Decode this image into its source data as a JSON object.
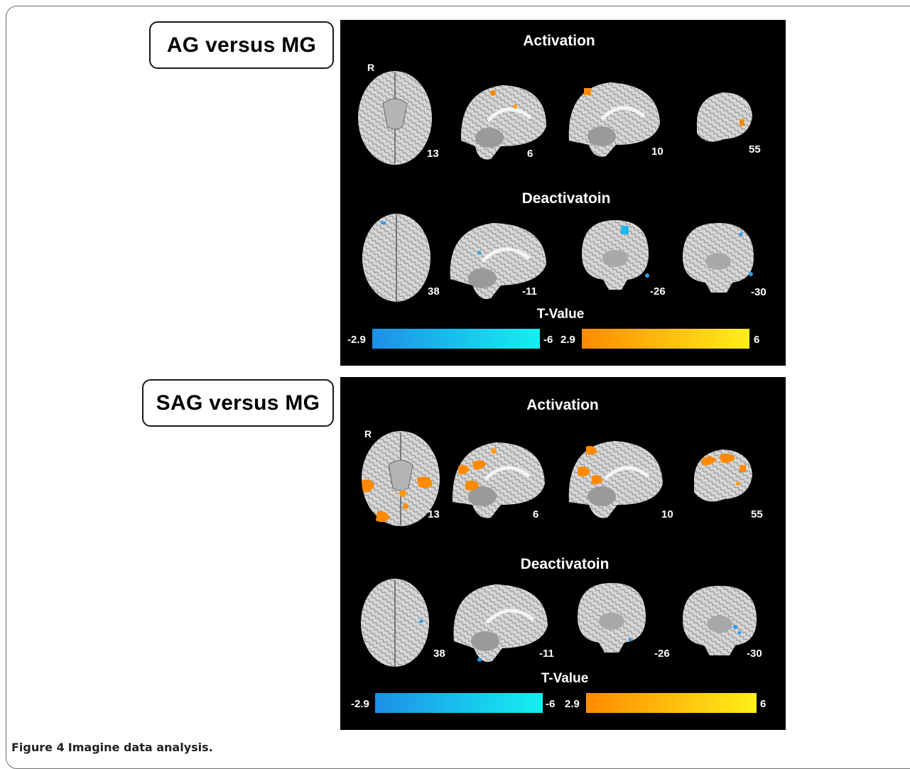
{
  "figure": {
    "number": "Figure 4",
    "title": "Imagine data analysis."
  },
  "groups": [
    {
      "label": "AG versus MG",
      "activation_title": "Activation",
      "deactivation_title": "Deactivatoin",
      "orientation_label": "R",
      "activation_slices": [
        "13",
        "6",
        "10",
        "55"
      ],
      "deactivation_slices": [
        "38",
        "-11",
        "-26",
        "-30"
      ],
      "colorbar_title": "T-Value",
      "neg_min": "-2.9",
      "neg_max": "-6",
      "pos_min": "2.9",
      "pos_max": "6"
    },
    {
      "label": "SAG versus MG",
      "activation_title": "Activation",
      "deactivation_title": "Deactivatoin",
      "orientation_label": "R",
      "activation_slices": [
        "13",
        "6",
        "10",
        "55"
      ],
      "deactivation_slices": [
        "38",
        "-11",
        "-26",
        "-30"
      ],
      "colorbar_title": "T-Value",
      "neg_min": "-2.9",
      "neg_max": "-6",
      "pos_min": "2.9",
      "pos_max": "6"
    }
  ],
  "colors": {
    "negative_scale": [
      "#1e8fe8",
      "#14f0f0"
    ],
    "positive_scale": [
      "#ff8a00",
      "#ffef1a"
    ],
    "background": "#000000"
  }
}
